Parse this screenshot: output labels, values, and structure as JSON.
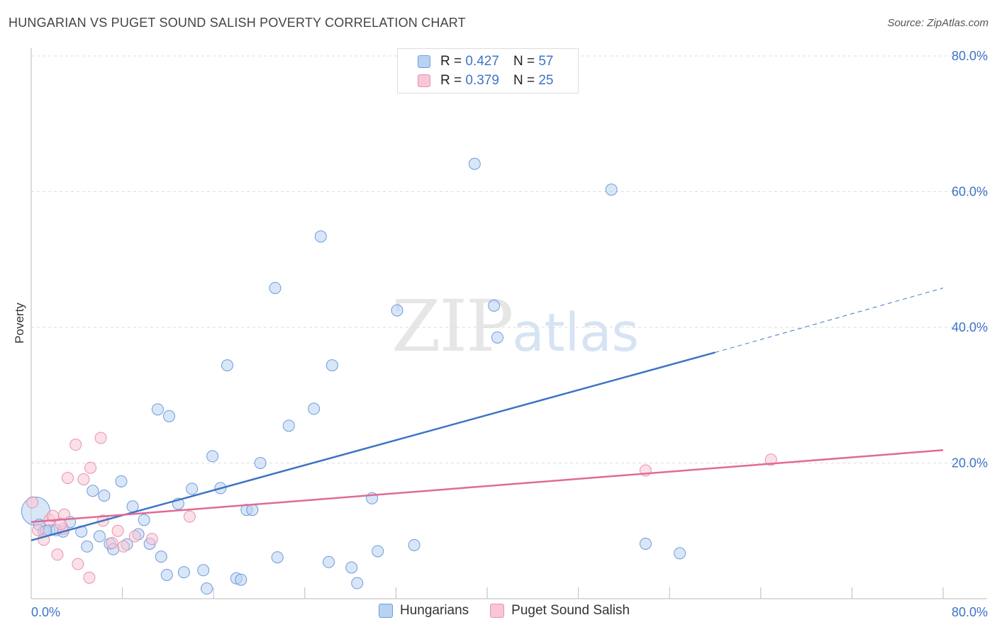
{
  "title": "HUNGARIAN VS PUGET SOUND SALISH POVERTY CORRELATION CHART",
  "source": "Source: ZipAtlas.com",
  "watermark": {
    "zip": "ZIP",
    "atlas": "atlas"
  },
  "legend": {
    "r_label": "R = ",
    "n_label": "N = ",
    "rows": [
      {
        "r": "0.427",
        "n": "57",
        "fill": "#b9d2f3",
        "stroke": "#6c9bdc"
      },
      {
        "r": "0.379",
        "n": "25",
        "fill": "#f8c6d6",
        "stroke": "#e892ad"
      }
    ]
  },
  "bottom_legend": [
    {
      "label": "Hungarians",
      "fill": "#b9d2f3",
      "stroke": "#6c9bdc"
    },
    {
      "label": "Puget Sound Salish",
      "fill": "#f8c6d6",
      "stroke": "#e892ad"
    }
  ],
  "chart_data": {
    "type": "scatter",
    "title": "HUNGARIAN VS PUGET SOUND SALISH POVERTY CORRELATION CHART",
    "xlabel": "",
    "ylabel": "Poverty",
    "xlim": [
      0,
      80
    ],
    "ylim": [
      0,
      80
    ],
    "x_tick_labels": [
      "0.0%",
      "80.0%"
    ],
    "y_ticks": [
      20,
      40,
      60,
      80
    ],
    "y_tick_labels": [
      "20.0%",
      "40.0%",
      "60.0%",
      "80.0%"
    ],
    "grid": true,
    "series": [
      {
        "name": "Hungarians",
        "color": "#3d74c4",
        "fill": "#b9d2f3",
        "stroke": "#6c9bdc",
        "points": [
          [
            0.4,
            12.9
          ],
          [
            0.7,
            10.9
          ],
          [
            1.1,
            9.9
          ],
          [
            1.6,
            10.1
          ],
          [
            2.2,
            10.1
          ],
          [
            2.8,
            9.9
          ],
          [
            3.4,
            11.3
          ],
          [
            4.4,
            9.9
          ],
          [
            4.9,
            7.7
          ],
          [
            5.4,
            15.9
          ],
          [
            6.0,
            9.2
          ],
          [
            6.4,
            15.2
          ],
          [
            6.9,
            8.1
          ],
          [
            7.2,
            7.3
          ],
          [
            7.9,
            17.3
          ],
          [
            8.4,
            8.0
          ],
          [
            8.9,
            13.6
          ],
          [
            9.4,
            9.5
          ],
          [
            9.9,
            11.6
          ],
          [
            10.4,
            8.1
          ],
          [
            11.1,
            27.9
          ],
          [
            11.4,
            6.2
          ],
          [
            11.9,
            3.5
          ],
          [
            12.1,
            26.9
          ],
          [
            12.9,
            14.0
          ],
          [
            13.4,
            3.9
          ],
          [
            14.1,
            16.2
          ],
          [
            15.1,
            4.2
          ],
          [
            15.4,
            1.5
          ],
          [
            15.9,
            21.0
          ],
          [
            16.6,
            16.3
          ],
          [
            17.2,
            34.4
          ],
          [
            18.0,
            3.0
          ],
          [
            18.4,
            2.8
          ],
          [
            18.9,
            13.1
          ],
          [
            19.4,
            13.1
          ],
          [
            20.1,
            20.0
          ],
          [
            21.4,
            45.8
          ],
          [
            21.6,
            6.1
          ],
          [
            22.6,
            25.5
          ],
          [
            24.8,
            28.0
          ],
          [
            25.4,
            53.4
          ],
          [
            26.1,
            5.4
          ],
          [
            26.4,
            34.4
          ],
          [
            28.1,
            4.6
          ],
          [
            28.6,
            2.3
          ],
          [
            29.9,
            14.8
          ],
          [
            30.4,
            7.0
          ],
          [
            32.1,
            42.5
          ],
          [
            33.6,
            7.9
          ],
          [
            38.9,
            64.1
          ],
          [
            40.6,
            43.2
          ],
          [
            40.9,
            38.5
          ],
          [
            50.9,
            60.3
          ],
          [
            53.9,
            8.1
          ],
          [
            56.9,
            6.7
          ],
          [
            1.3,
            10.0
          ]
        ],
        "trend": {
          "x1": 0,
          "y1": 8.6,
          "x2": 60,
          "y2": 36.3,
          "dash_to_x": 80,
          "dash_to_y": 45.8
        }
      },
      {
        "name": "Puget Sound Salish",
        "color": "#e06b94",
        "fill": "#f8c6d6",
        "stroke": "#e892ad",
        "points": [
          [
            0.1,
            14.2
          ],
          [
            0.6,
            10.1
          ],
          [
            1.1,
            8.7
          ],
          [
            1.6,
            11.6
          ],
          [
            1.9,
            12.2
          ],
          [
            2.3,
            6.5
          ],
          [
            2.8,
            10.3
          ],
          [
            2.9,
            12.4
          ],
          [
            3.2,
            17.8
          ],
          [
            3.9,
            22.7
          ],
          [
            4.1,
            5.1
          ],
          [
            4.6,
            17.6
          ],
          [
            5.1,
            3.1
          ],
          [
            5.2,
            19.3
          ],
          [
            6.1,
            23.7
          ],
          [
            6.3,
            11.5
          ],
          [
            7.1,
            8.2
          ],
          [
            7.6,
            10.0
          ],
          [
            8.1,
            7.7
          ],
          [
            9.1,
            9.2
          ],
          [
            10.6,
            8.8
          ],
          [
            13.9,
            12.1
          ],
          [
            53.9,
            18.9
          ],
          [
            64.9,
            20.5
          ],
          [
            2.6,
            11.0
          ]
        ],
        "trend": {
          "x1": 0,
          "y1": 11.3,
          "x2": 80,
          "y2": 21.9
        }
      }
    ]
  }
}
